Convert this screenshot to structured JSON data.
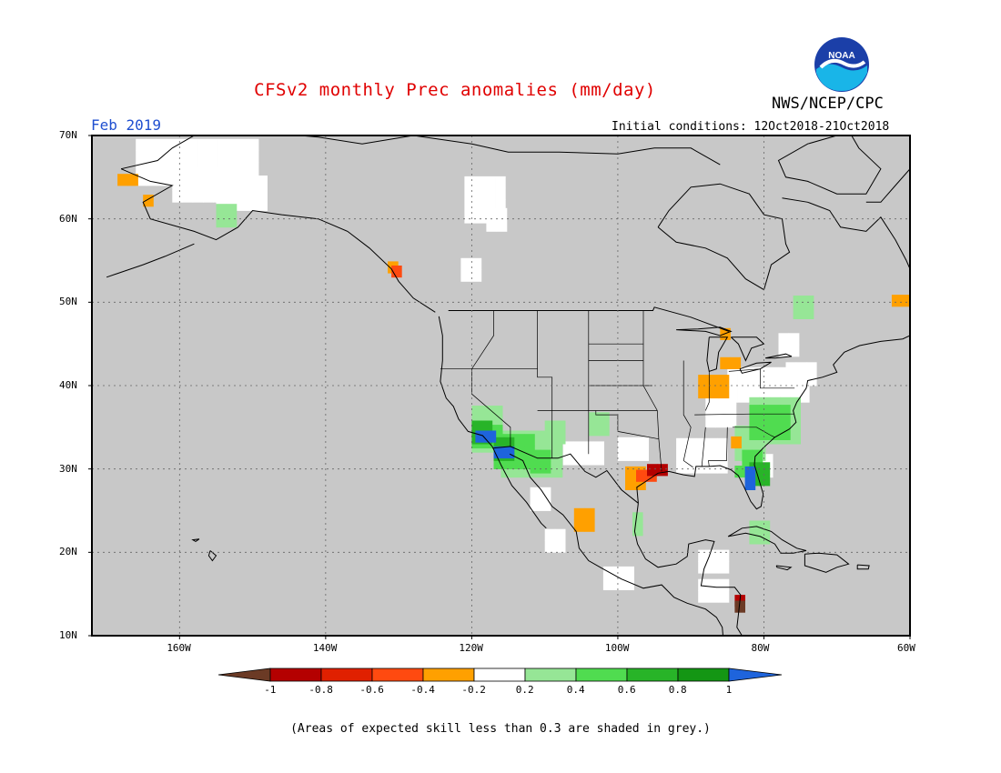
{
  "header": {
    "title": "CFSv2 monthly Prec anomalies (mm/day)",
    "org": "NWS/NCEP/CPC",
    "logo_text": "NOAA",
    "month": "Feb 2019",
    "initial_conditions": "Initial conditions: 12Oct2018-21Oct2018"
  },
  "map": {
    "projection": "equirectangular",
    "lon_range": [
      -172,
      -60
    ],
    "lat_range": [
      10,
      70
    ],
    "background_color": "#c8c8c8",
    "grid": true,
    "lat_labels": [
      "70N",
      "60N",
      "50N",
      "40N",
      "30N",
      "20N",
      "10N"
    ],
    "lon_labels": [
      "160W",
      "140W",
      "120W",
      "100W",
      "80W",
      "60W"
    ]
  },
  "colorbar": {
    "labels": [
      "-1",
      "-0.8",
      "-0.6",
      "-0.4",
      "-0.2",
      "0.2",
      "0.4",
      "0.6",
      "0.8",
      "1"
    ],
    "colors": [
      "#6b3a25",
      "#b40000",
      "#e02000",
      "#ff4a10",
      "#ffa000",
      "#ffffff",
      "#96e696",
      "#50dc50",
      "#28b428",
      "#149614",
      "#1e64dc"
    ]
  },
  "note": "(Areas of expected skill less than 0.3 are shaded in grey.)"
}
